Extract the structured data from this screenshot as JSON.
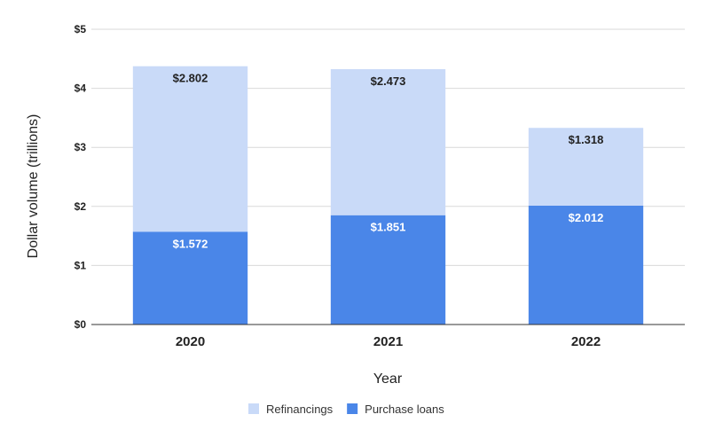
{
  "chart_data": {
    "type": "bar",
    "stacked": true,
    "categories": [
      "2020",
      "2021",
      "2022"
    ],
    "series": [
      {
        "name": "Purchase loans",
        "values": [
          1.572,
          1.851,
          2.012
        ],
        "color": "#4a86e8",
        "labels": [
          "$1.572",
          "$1.851",
          "$2.012"
        ],
        "label_color": "#ffffff"
      },
      {
        "name": "Refinancings",
        "values": [
          2.802,
          2.473,
          1.318
        ],
        "color": "#c9daf8",
        "labels": [
          "$2.802",
          "$2.473",
          "$1.318"
        ],
        "label_color": "#222222"
      }
    ],
    "yticks": [
      0,
      1,
      2,
      3,
      4,
      5
    ],
    "ytick_labels": [
      "$0",
      "$1",
      "$2",
      "$3",
      "$4",
      "$5"
    ],
    "ylim": [
      0,
      5
    ],
    "xlabel": "Year",
    "ylabel": "Dollar volume (trillions)",
    "grid": true,
    "legend": {
      "position": "bottom",
      "order": [
        "Refinancings",
        "Purchase loans"
      ]
    }
  }
}
